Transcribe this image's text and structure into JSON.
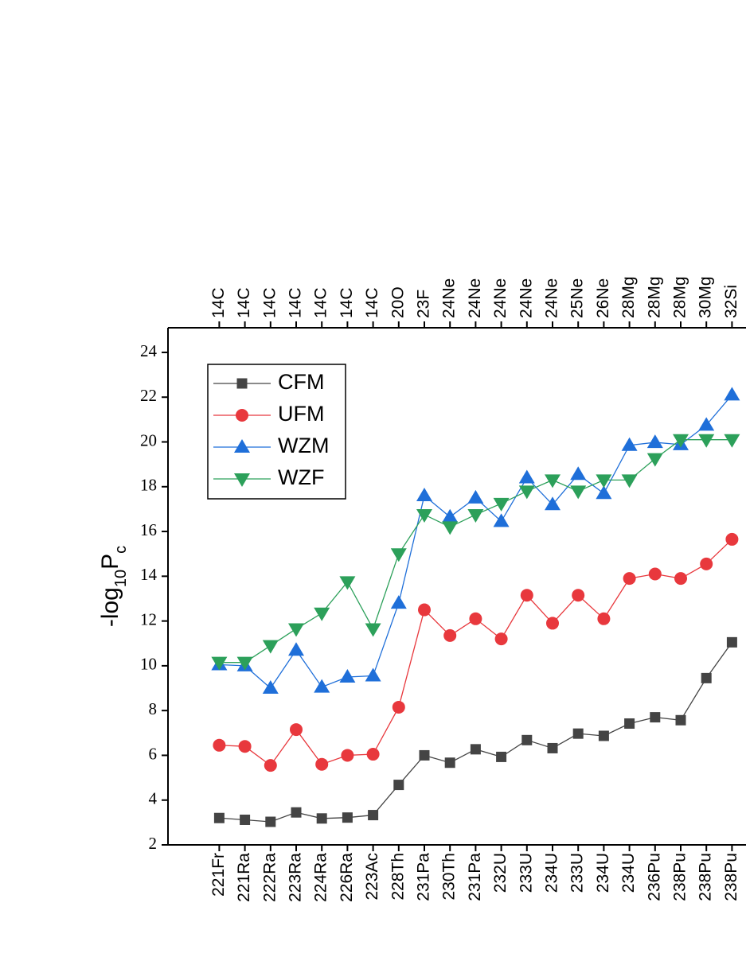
{
  "chart_data": {
    "type": "line",
    "ylabel": [
      "-log",
      "10",
      "P",
      "c"
    ],
    "categories": [
      "221Fr",
      "221Ra",
      "222Ra",
      "223Ra",
      "224Ra",
      "226Ra",
      "223Ac",
      "228Th",
      "231Pa",
      "230Th",
      "231Pa",
      "232U",
      "233U",
      "234U",
      "233U",
      "234U",
      "234U",
      "236Pu",
      "238Pu",
      "238Pu",
      "238Pu"
    ],
    "top_categories": [
      "14C",
      "14C",
      "14C",
      "14C",
      "14C",
      "14C",
      "14C",
      "20O",
      "23F",
      "24Ne",
      "24Ne",
      "24Ne",
      "24Ne",
      "24Ne",
      "25Ne",
      "26Ne",
      "28Mg",
      "28Mg",
      "28Mg",
      "30Mg",
      "32Si"
    ],
    "series": [
      {
        "name": "CFM",
        "color": "#444444",
        "marker": "square",
        "values": [
          3.2,
          3.12,
          3.03,
          3.45,
          3.18,
          3.22,
          3.33,
          4.68,
          6.0,
          5.67,
          6.27,
          5.93,
          6.68,
          6.32,
          6.97,
          6.87,
          7.42,
          7.7,
          7.57,
          9.45,
          11.05
        ]
      },
      {
        "name": "UFM",
        "color": "#e8383d",
        "marker": "circle",
        "values": [
          6.45,
          6.4,
          5.55,
          7.15,
          5.6,
          6.0,
          6.05,
          8.15,
          12.5,
          11.35,
          12.1,
          11.2,
          13.15,
          11.9,
          13.15,
          12.1,
          13.9,
          14.1,
          13.9,
          14.55,
          15.65
        ]
      },
      {
        "name": "WZM",
        "color": "#1f6fd9",
        "marker": "triangle-up",
        "values": [
          10.05,
          10.0,
          9.0,
          10.7,
          9.05,
          9.5,
          9.55,
          12.8,
          17.6,
          16.65,
          17.5,
          16.45,
          18.4,
          17.2,
          18.55,
          17.7,
          19.85,
          19.98,
          19.88,
          20.75,
          22.1
        ]
      },
      {
        "name": "WZF",
        "color": "#2ca05a",
        "marker": "triangle-down",
        "values": [
          10.15,
          10.15,
          10.9,
          11.65,
          12.35,
          13.75,
          11.65,
          15.0,
          16.75,
          16.2,
          16.75,
          17.25,
          17.8,
          18.3,
          17.8,
          18.3,
          18.3,
          19.25,
          20.1,
          20.1,
          20.1
        ]
      }
    ],
    "ylim": [
      2,
      25.1
    ],
    "yticks": [
      2,
      4,
      6,
      8,
      10,
      12,
      14,
      16,
      18,
      20,
      22,
      24
    ],
    "grid": false
  }
}
